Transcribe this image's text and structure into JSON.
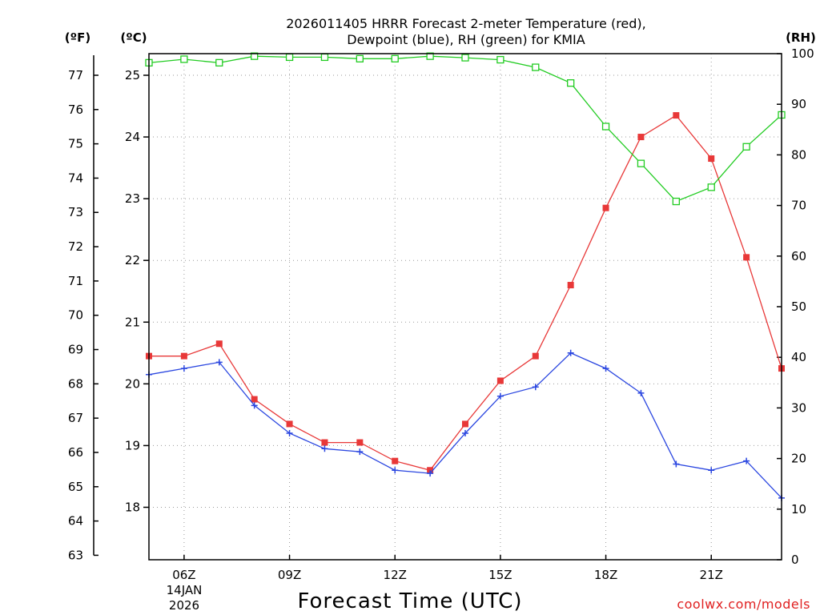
{
  "chart_data": {
    "type": "line",
    "title_line1": "2026011405 HRRR Forecast 2-meter Temperature (red),",
    "title_line2": "Dewpoint (blue), RH (green) for KMIA",
    "xlabel": "Forecast Time (UTC)",
    "credit": "coolwx.com/models",
    "unit_left_f": "(ºF)",
    "unit_left_c": "(ºC)",
    "unit_right": "(RH)",
    "date_line1": "14JAN",
    "date_line2": "2026",
    "x_hours": [
      5,
      6,
      7,
      8,
      9,
      10,
      11,
      12,
      13,
      14,
      15,
      16,
      17,
      18,
      19,
      20,
      21,
      22,
      23
    ],
    "xlim": [
      5,
      23
    ],
    "x_ticks": [
      {
        "hour": 6,
        "label": "06Z"
      },
      {
        "hour": 9,
        "label": "09Z"
      },
      {
        "hour": 12,
        "label": "12Z"
      },
      {
        "hour": 15,
        "label": "15Z"
      },
      {
        "hour": 18,
        "label": "18Z"
      },
      {
        "hour": 21,
        "label": "21Z"
      }
    ],
    "ylim_c": [
      17.15,
      25.35
    ],
    "y_ticks_c": [
      18,
      19,
      20,
      21,
      22,
      23,
      24,
      25
    ],
    "y_ticks_f": [
      63,
      64,
      65,
      66,
      67,
      68,
      69,
      70,
      71,
      72,
      73,
      74,
      75,
      76,
      77
    ],
    "ylim_rh": [
      0,
      100
    ],
    "y_ticks_rh": [
      0,
      10,
      20,
      30,
      40,
      50,
      60,
      70,
      80,
      90,
      100
    ],
    "series": [
      {
        "name": "Temperature",
        "color": "#e83838",
        "marker": "filled-square",
        "axis": "celsius",
        "values": [
          20.45,
          20.45,
          20.65,
          19.75,
          19.35,
          19.05,
          19.05,
          18.75,
          18.6,
          19.35,
          20.05,
          20.45,
          21.6,
          22.85,
          24.0,
          24.35,
          23.65,
          22.05,
          20.25
        ]
      },
      {
        "name": "Dewpoint",
        "color": "#2a46e0",
        "marker": "plus",
        "axis": "celsius",
        "values": [
          20.15,
          20.25,
          20.35,
          19.65,
          19.2,
          18.95,
          18.9,
          18.6,
          18.55,
          19.2,
          19.8,
          19.95,
          20.5,
          20.25,
          19.85,
          18.7,
          18.6,
          18.75,
          18.15
        ]
      },
      {
        "name": "RH",
        "color": "#22cc22",
        "marker": "open-square",
        "axis": "rh",
        "values": [
          98.2,
          98.9,
          98.2,
          99.5,
          99.3,
          99.3,
          99.0,
          99.0,
          99.5,
          99.2,
          98.8,
          97.3,
          94.2,
          85.6,
          78.3,
          70.8,
          73.6,
          81.6,
          87.9
        ]
      }
    ]
  }
}
